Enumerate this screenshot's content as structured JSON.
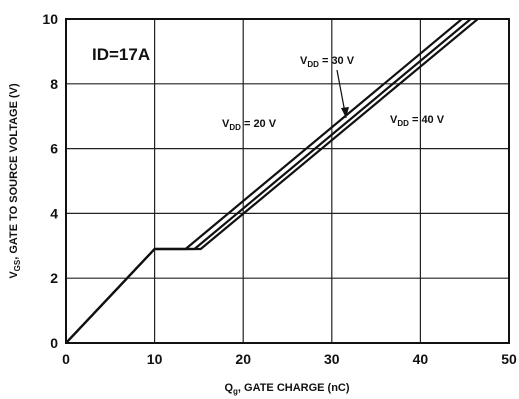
{
  "chart_data": {
    "type": "line",
    "title": "",
    "xlabel": {
      "main": "Q",
      "sub": "g",
      "rest": ", GATE CHARGE (nC)"
    },
    "ylabel": {
      "main": "V",
      "sub": "GS",
      "rest": ", GATE TO SOURCE VOLTAGE (V)"
    },
    "xlim": [
      0,
      50
    ],
    "ylim": [
      0,
      10
    ],
    "xticks": [
      "0",
      "10",
      "20",
      "30",
      "40",
      "50"
    ],
    "yticks": [
      "0",
      "2",
      "4",
      "6",
      "8",
      "10"
    ],
    "grid": true,
    "condition": "ID=17A",
    "series": [
      {
        "name": {
          "main": "V",
          "sub": "DD",
          "rest": " = 20 V"
        },
        "color": "#111111",
        "points": [
          [
            0,
            0
          ],
          [
            10,
            2.9
          ],
          [
            13.5,
            2.9
          ],
          [
            46,
            10.3
          ]
        ]
      },
      {
        "name": {
          "main": "V",
          "sub": "DD",
          "rest": " = 30 V"
        },
        "color": "#111111",
        "points": [
          [
            0,
            0
          ],
          [
            10,
            2.9
          ],
          [
            14.5,
            2.9
          ],
          [
            47,
            10.3
          ]
        ]
      },
      {
        "name": {
          "main": "V",
          "sub": "DD",
          "rest": " = 40 V"
        },
        "color": "#111111",
        "points": [
          [
            0,
            0
          ],
          [
            10,
            2.9
          ],
          [
            15.2,
            2.9
          ],
          [
            47.8,
            10.3
          ]
        ]
      }
    ]
  }
}
